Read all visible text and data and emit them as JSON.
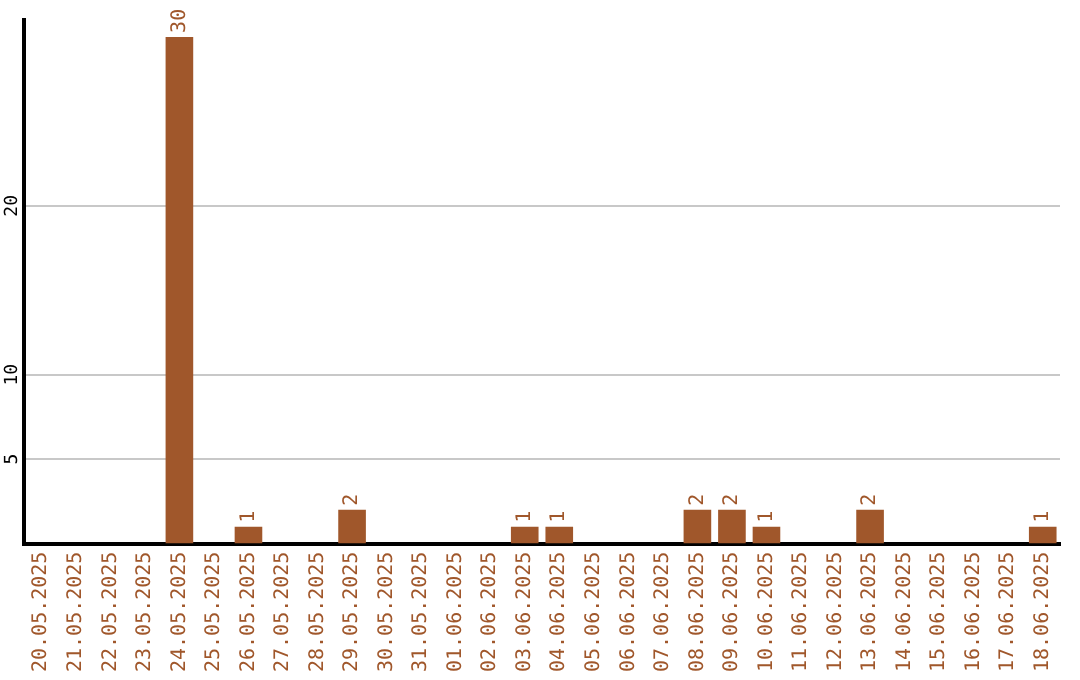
{
  "chart_data": {
    "type": "bar",
    "categories": [
      "20.05.2025",
      "21.05.2025",
      "22.05.2025",
      "23.05.2025",
      "24.05.2025",
      "25.05.2025",
      "26.05.2025",
      "27.05.2025",
      "28.05.2025",
      "29.05.2025",
      "30.05.2025",
      "31.05.2025",
      "01.06.2025",
      "02.06.2025",
      "03.06.2025",
      "04.06.2025",
      "05.06.2025",
      "06.06.2025",
      "07.06.2025",
      "08.06.2025",
      "09.06.2025",
      "10.06.2025",
      "11.06.2025",
      "12.06.2025",
      "13.06.2025",
      "14.06.2025",
      "15.06.2025",
      "16.06.2025",
      "17.06.2025",
      "18.06.2025"
    ],
    "values": [
      0,
      0,
      0,
      0,
      30,
      0,
      1,
      0,
      0,
      2,
      0,
      0,
      0,
      0,
      1,
      1,
      0,
      0,
      0,
      2,
      2,
      1,
      0,
      0,
      2,
      0,
      0,
      0,
      0,
      1
    ],
    "value_labels": [
      null,
      null,
      null,
      null,
      "30",
      null,
      "1",
      null,
      null,
      "2",
      null,
      null,
      null,
      null,
      "1",
      "1",
      null,
      null,
      null,
      "2",
      "2",
      "1",
      null,
      null,
      "2",
      null,
      null,
      null,
      null,
      "1"
    ],
    "color": "#a0572b",
    "ylim": [
      0,
      31
    ],
    "yticks": [
      5,
      10,
      20
    ],
    "grid": "y",
    "legend": false
  }
}
